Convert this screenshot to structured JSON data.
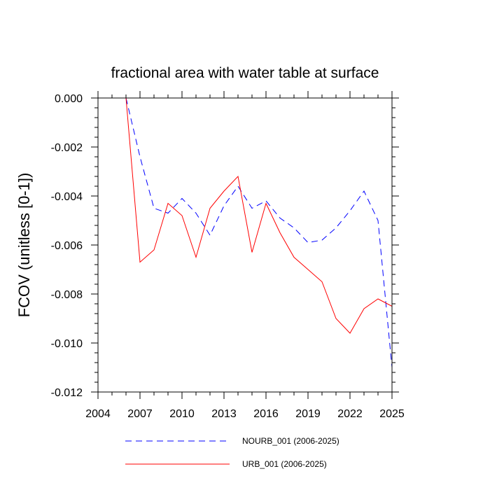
{
  "chart_data": {
    "type": "line",
    "title": "fractional area with water table at surface",
    "xlabel": "",
    "ylabel": "FCOV  (unitless [0-1])",
    "xlim": [
      2004,
      2025
    ],
    "ylim": [
      -0.012,
      0.0
    ],
    "x_ticks": [
      2004,
      2007,
      2010,
      2013,
      2016,
      2019,
      2022,
      2025
    ],
    "x_tick_labels": [
      "2004",
      "2007",
      "2010",
      "2013",
      "2016",
      "2019",
      "2022",
      "2025"
    ],
    "y_ticks": [
      0.0,
      -0.002,
      -0.004,
      -0.006,
      -0.008,
      -0.01,
      -0.012
    ],
    "y_tick_labels": [
      "0.000",
      "-0.002",
      "-0.004",
      "-0.006",
      "-0.008",
      "-0.010",
      "-0.012"
    ],
    "x": [
      2006,
      2007,
      2008,
      2009,
      2010,
      2011,
      2012,
      2013,
      2014,
      2015,
      2016,
      2017,
      2018,
      2019,
      2020,
      2021,
      2022,
      2023,
      2024,
      2025
    ],
    "series": [
      {
        "name": "NOURB_001 (2006-2025)",
        "color": "#0000ff",
        "dash": "dashed",
        "values": [
          0.0,
          -0.0024,
          -0.0045,
          -0.0047,
          -0.0041,
          -0.0047,
          -0.0056,
          -0.0044,
          -0.0036,
          -0.0045,
          -0.0042,
          -0.0049,
          -0.0053,
          -0.0059,
          -0.0058,
          -0.0053,
          -0.0046,
          -0.0038,
          -0.005,
          -0.011
        ]
      },
      {
        "name": "URB_001 (2006-2025)",
        "color": "#ff0000",
        "dash": "solid",
        "values": [
          0.0,
          -0.0067,
          -0.0062,
          -0.0043,
          -0.0048,
          -0.0065,
          -0.0045,
          -0.0038,
          -0.0032,
          -0.0063,
          -0.0043,
          -0.0055,
          -0.0065,
          -0.007,
          -0.0075,
          -0.009,
          -0.0096,
          -0.0086,
          -0.0082,
          -0.0085
        ]
      }
    ],
    "legend_position": "bottom"
  }
}
